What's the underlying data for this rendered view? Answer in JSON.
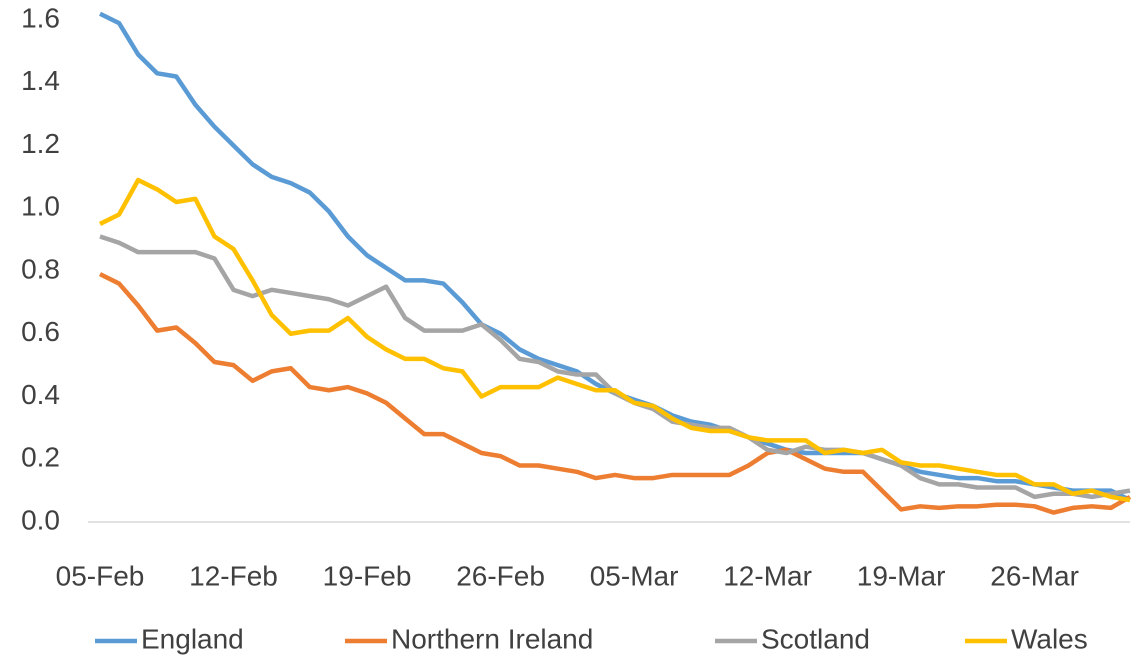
{
  "chart_data": {
    "type": "line",
    "categories": [
      "05-Feb",
      null,
      null,
      null,
      null,
      null,
      null,
      "12-Feb",
      null,
      null,
      null,
      null,
      null,
      null,
      "19-Feb",
      null,
      null,
      null,
      null,
      null,
      null,
      "26-Feb",
      null,
      null,
      null,
      null,
      null,
      null,
      "05-Mar",
      null,
      null,
      null,
      null,
      null,
      null,
      "12-Mar",
      null,
      null,
      null,
      null,
      null,
      null,
      "19-Mar",
      null,
      null,
      null,
      null,
      null,
      null,
      "26-Mar",
      null,
      null,
      null,
      null,
      null
    ],
    "series": [
      {
        "name": "England",
        "color": "#5b9bd5",
        "values": [
          1.62,
          1.59,
          1.49,
          1.43,
          1.42,
          1.33,
          1.26,
          1.2,
          1.14,
          1.1,
          1.08,
          1.05,
          0.99,
          0.91,
          0.85,
          0.81,
          0.77,
          0.77,
          0.76,
          0.7,
          0.63,
          0.6,
          0.55,
          0.52,
          0.5,
          0.48,
          0.44,
          0.41,
          0.39,
          0.37,
          0.34,
          0.32,
          0.31,
          0.29,
          0.27,
          0.25,
          0.23,
          0.22,
          0.22,
          0.22,
          0.22,
          0.2,
          0.18,
          0.16,
          0.15,
          0.14,
          0.14,
          0.13,
          0.13,
          0.12,
          0.11,
          0.1,
          0.1,
          0.1,
          0.07
        ]
      },
      {
        "name": "Northern Ireland",
        "color": "#ed7d31",
        "values": [
          0.79,
          0.76,
          0.69,
          0.61,
          0.62,
          0.57,
          0.51,
          0.5,
          0.45,
          0.48,
          0.49,
          0.43,
          0.42,
          0.43,
          0.41,
          0.38,
          0.33,
          0.28,
          0.28,
          0.25,
          0.22,
          0.21,
          0.18,
          0.18,
          0.17,
          0.16,
          0.14,
          0.15,
          0.14,
          0.14,
          0.15,
          0.15,
          0.15,
          0.15,
          0.18,
          0.22,
          0.23,
          0.2,
          0.17,
          0.16,
          0.16,
          0.1,
          0.04,
          0.05,
          0.045,
          0.05,
          0.05,
          0.055,
          0.055,
          0.05,
          0.03,
          0.045,
          0.05,
          0.045,
          0.08
        ]
      },
      {
        "name": "Scotland",
        "color": "#a5a5a5",
        "values": [
          0.91,
          0.89,
          0.86,
          0.86,
          0.86,
          0.86,
          0.84,
          0.74,
          0.72,
          0.74,
          0.73,
          0.72,
          0.71,
          0.69,
          0.72,
          0.75,
          0.65,
          0.61,
          0.61,
          0.61,
          0.63,
          0.58,
          0.52,
          0.51,
          0.48,
          0.47,
          0.47,
          0.41,
          0.38,
          0.36,
          0.32,
          0.31,
          0.3,
          0.3,
          0.27,
          0.23,
          0.22,
          0.24,
          0.23,
          0.23,
          0.22,
          0.2,
          0.18,
          0.14,
          0.12,
          0.12,
          0.11,
          0.11,
          0.11,
          0.08,
          0.09,
          0.09,
          0.08,
          0.09,
          0.1
        ]
      },
      {
        "name": "Wales",
        "color": "#ffc000",
        "values": [
          0.95,
          0.98,
          1.09,
          1.06,
          1.02,
          1.03,
          0.91,
          0.87,
          0.77,
          0.66,
          0.6,
          0.61,
          0.61,
          0.65,
          0.59,
          0.55,
          0.52,
          0.52,
          0.49,
          0.48,
          0.4,
          0.43,
          0.43,
          0.43,
          0.46,
          0.44,
          0.42,
          0.42,
          0.38,
          0.37,
          0.33,
          0.3,
          0.29,
          0.29,
          0.27,
          0.26,
          0.26,
          0.26,
          0.22,
          0.23,
          0.22,
          0.23,
          0.19,
          0.18,
          0.18,
          0.17,
          0.16,
          0.15,
          0.15,
          0.12,
          0.12,
          0.09,
          0.1,
          0.08,
          0.07
        ]
      }
    ],
    "ylim": [
      0,
      1.6
    ],
    "yticks": [
      {
        "value": 0,
        "label": "0.0"
      },
      0.2,
      0.4,
      0.6,
      0.8,
      {
        "value": 1,
        "label": "1.0"
      },
      1.2,
      1.4,
      1.6
    ],
    "grid": false,
    "legend": "bottom"
  }
}
